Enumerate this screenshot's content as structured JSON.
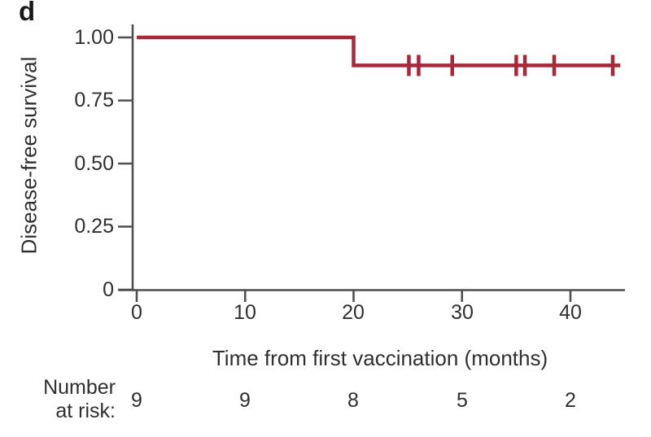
{
  "panel_label": "d",
  "colors": {
    "curve": "#a5293a",
    "axis": "#4f4f4f",
    "text": "#2f2f2f",
    "background": "#ffffff"
  },
  "chart_data": {
    "type": "line",
    "subtype": "kaplan_meier_step",
    "title": "",
    "xlabel": "Time from first vaccination (months)",
    "ylabel": "Disease-free survival",
    "xlim": [
      0,
      45
    ],
    "ylim": [
      0,
      1.0
    ],
    "grid": false,
    "legend": false,
    "xticks": [
      0,
      10,
      20,
      30,
      40
    ],
    "ytick_labels": [
      "1.00",
      "0.75",
      "0.50",
      "0.25",
      "0"
    ],
    "ytick_values": [
      1.0,
      0.75,
      0.5,
      0.25,
      0
    ],
    "series": [
      {
        "name": "Disease-free survival",
        "color": "#a5293a",
        "step_points": [
          {
            "t": 0,
            "s": 1.0
          },
          {
            "t": 20,
            "s": 0.889
          }
        ],
        "end_time": 44.6,
        "censor_level": 0.889,
        "censor_times": [
          25.1,
          26.0,
          29.1,
          35.0,
          35.8,
          38.5,
          43.9
        ]
      }
    ],
    "number_at_risk": {
      "label_line1": "Number",
      "label_line2": "at risk:",
      "times": [
        0,
        10,
        20,
        30,
        40
      ],
      "counts": [
        9,
        9,
        8,
        5,
        2
      ]
    }
  }
}
